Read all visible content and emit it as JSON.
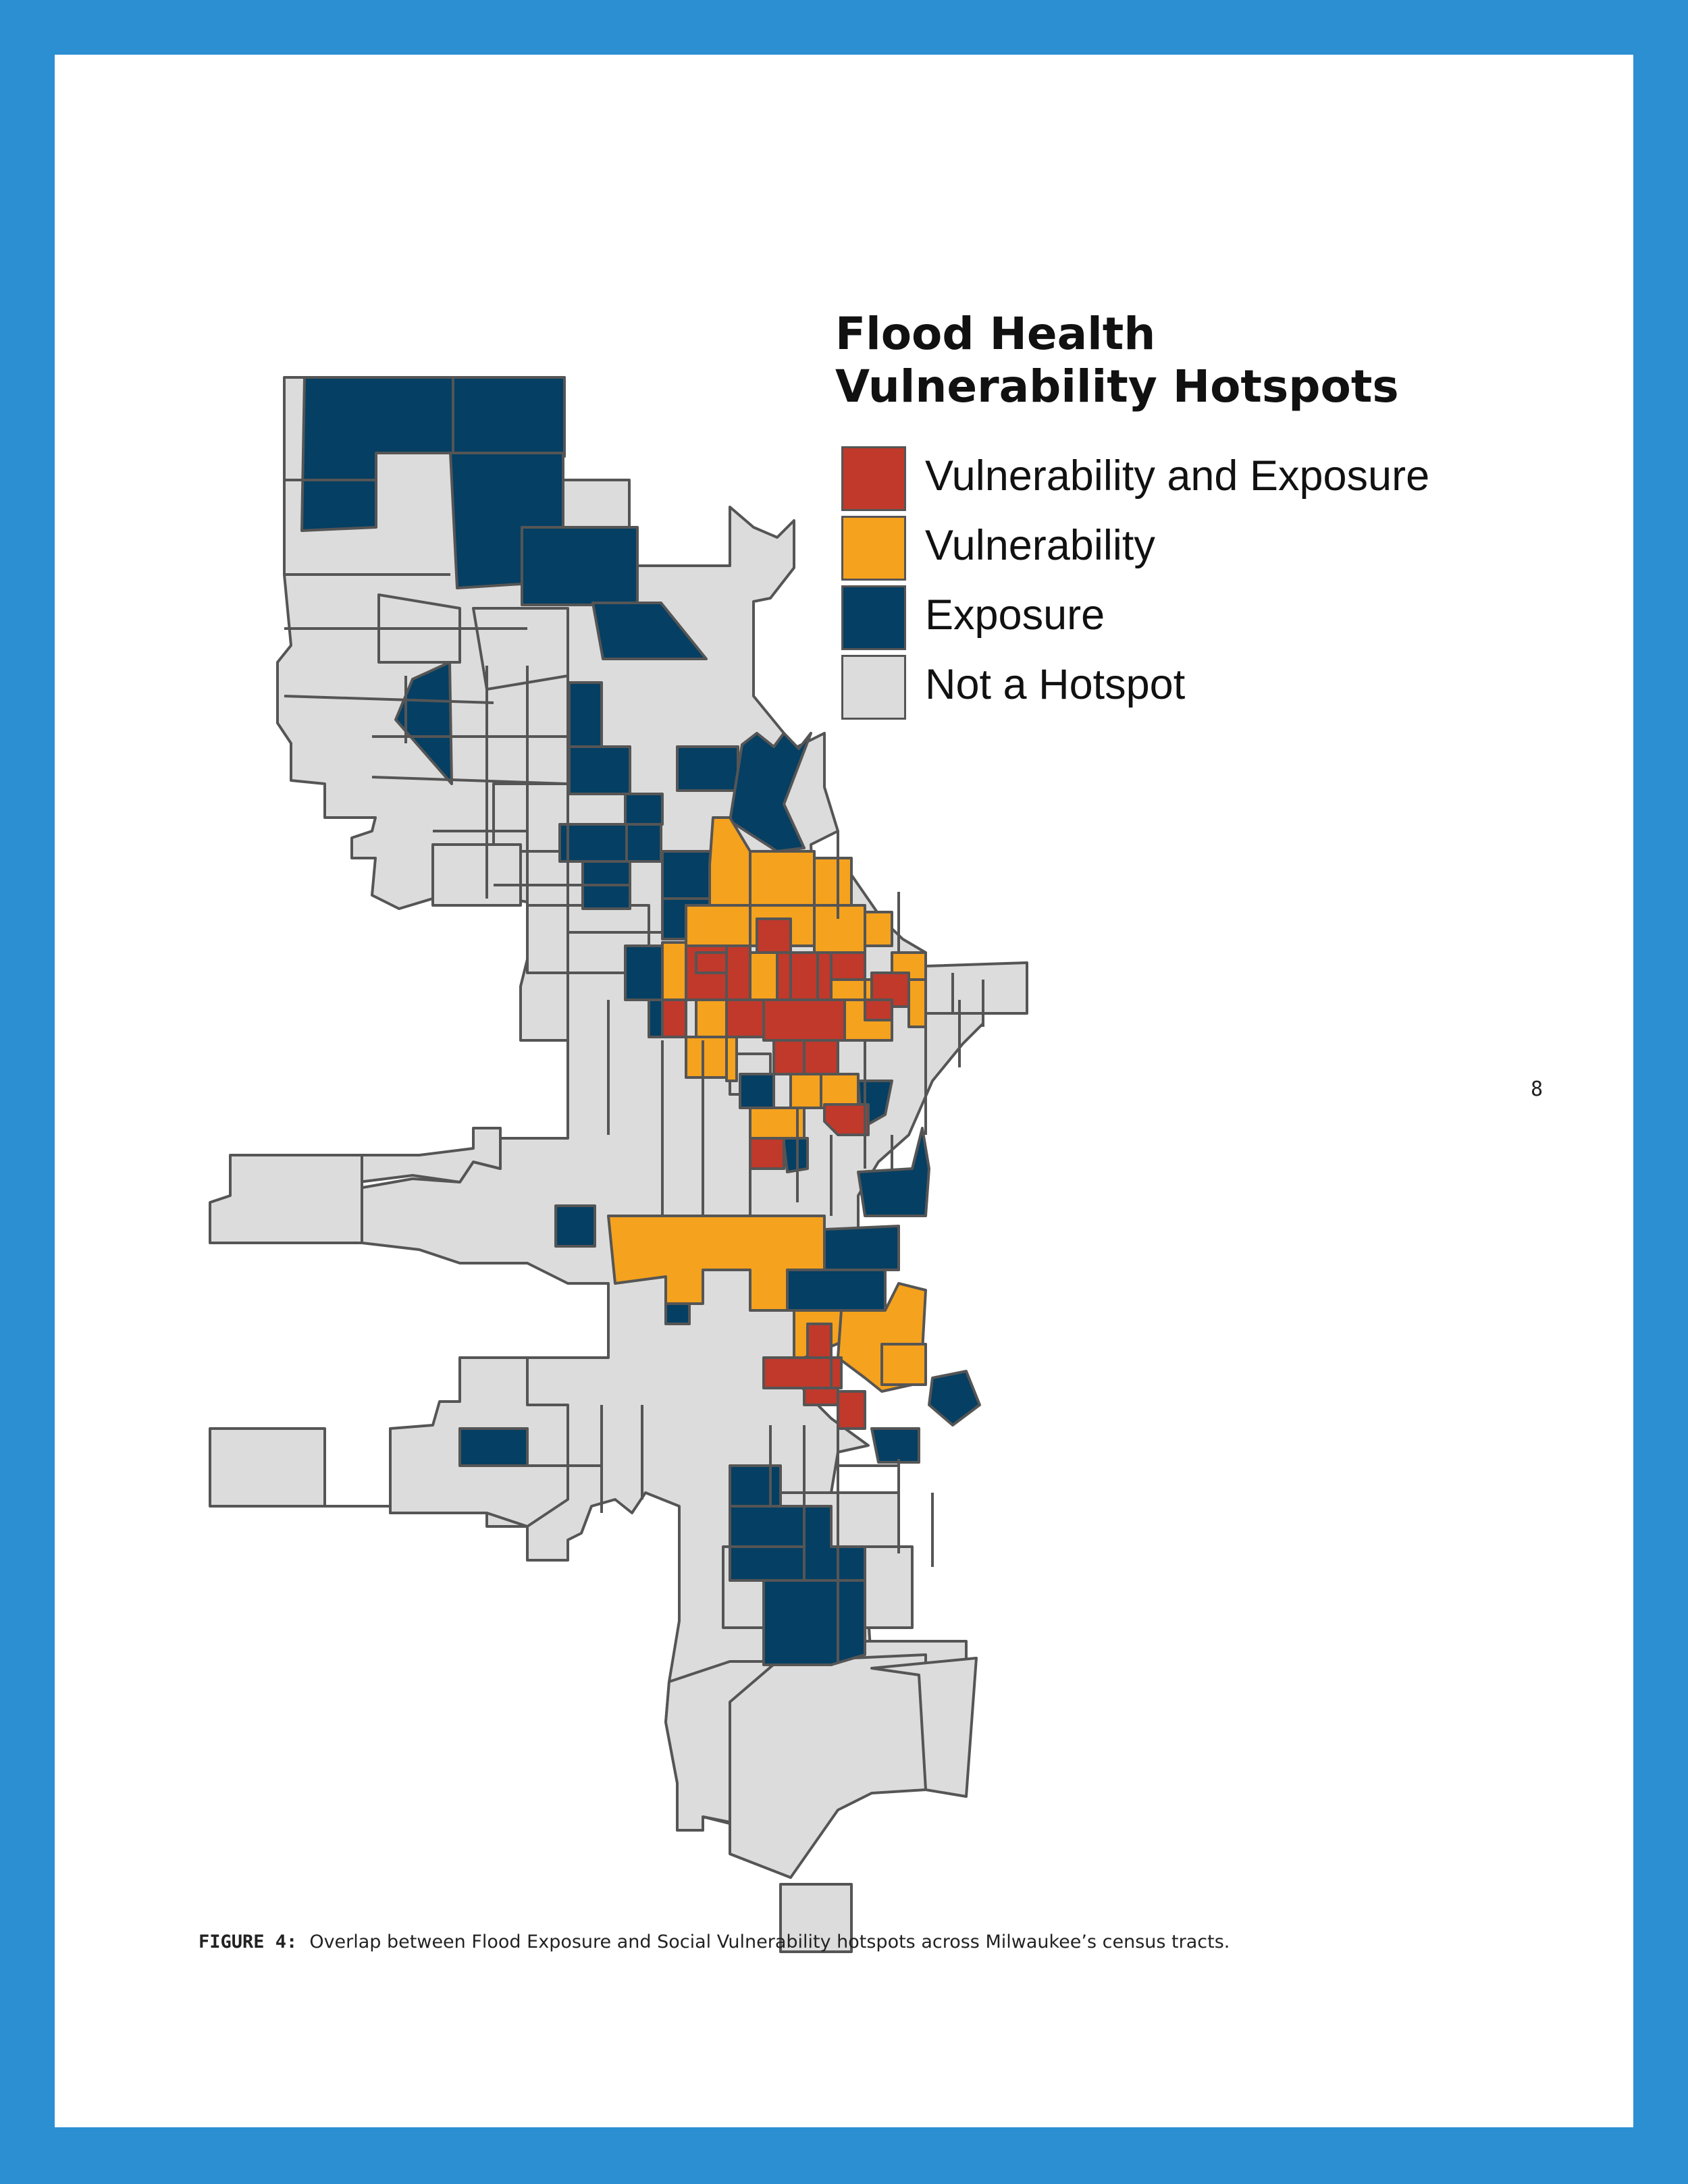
{
  "legend": {
    "title_line1": "Flood Health",
    "title_line2": "Vulnerability Hotspots",
    "items": [
      {
        "label": "Vulnerability and Exposure",
        "color": "#c0392b"
      },
      {
        "label": "Vulnerability",
        "color": "#f5a21e"
      },
      {
        "label": "Exposure",
        "color": "#053f63"
      },
      {
        "label": "Not a Hotspot",
        "color": "#dcdcdc"
      }
    ]
  },
  "map": {
    "tract_outline_color": "#555555"
  },
  "page_number": "8",
  "caption": {
    "label": "FIGURE 4:",
    "text": "Overlap between Flood Exposure and Social Vulnerability hotspots across Milwaukee’s census tracts."
  }
}
